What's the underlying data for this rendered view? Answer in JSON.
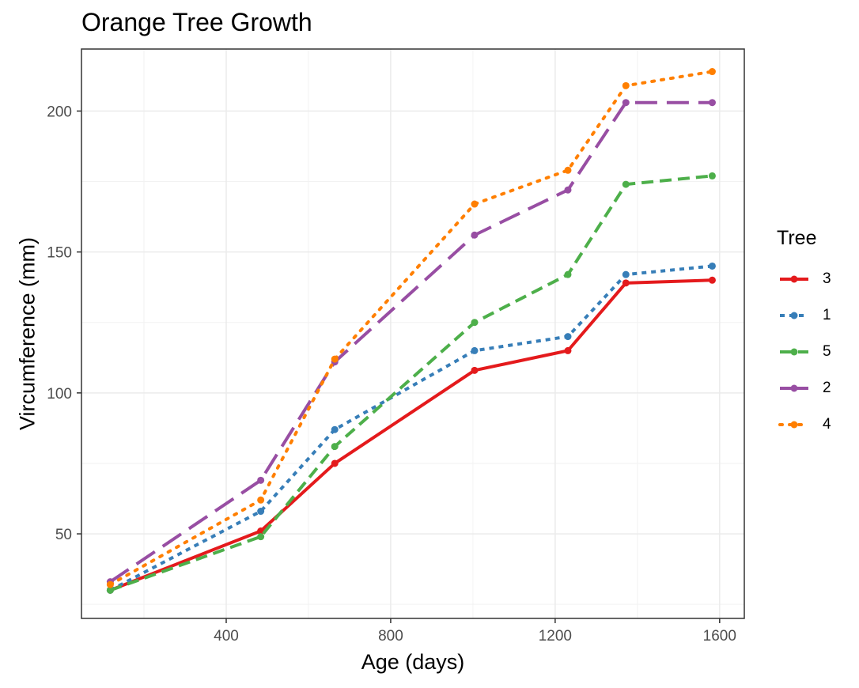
{
  "chart_data": {
    "type": "line",
    "title": "Orange Tree Growth",
    "xlabel": "Age (days)",
    "ylabel": "Vircumference (mm)",
    "xlim": [
      48,
      1660
    ],
    "ylim": [
      20,
      222
    ],
    "x_ticks": [
      400,
      800,
      1200,
      1600
    ],
    "y_ticks": [
      50,
      100,
      150,
      200
    ],
    "grid": true,
    "legend_title": "Tree",
    "legend_position": "right",
    "x": [
      118,
      484,
      664,
      1004,
      1231,
      1372,
      1582
    ],
    "series": [
      {
        "name": "3",
        "values": [
          30,
          51,
          75,
          108,
          115,
          139,
          140
        ],
        "color": "#e41a1c",
        "dash": "solid"
      },
      {
        "name": "1",
        "values": [
          30,
          58,
          87,
          115,
          120,
          142,
          145
        ],
        "color": "#377eb8",
        "dash": "dotted"
      },
      {
        "name": "5",
        "values": [
          30,
          49,
          81,
          125,
          142,
          174,
          177
        ],
        "color": "#4daf4a",
        "dash": "dashed"
      },
      {
        "name": "2",
        "values": [
          33,
          69,
          111,
          156,
          172,
          203,
          203
        ],
        "color": "#984ea3",
        "dash": "longdash"
      },
      {
        "name": "4",
        "values": [
          32,
          62,
          112,
          167,
          179,
          209,
          214
        ],
        "color": "#ff7f00",
        "dash": "dot"
      }
    ]
  }
}
